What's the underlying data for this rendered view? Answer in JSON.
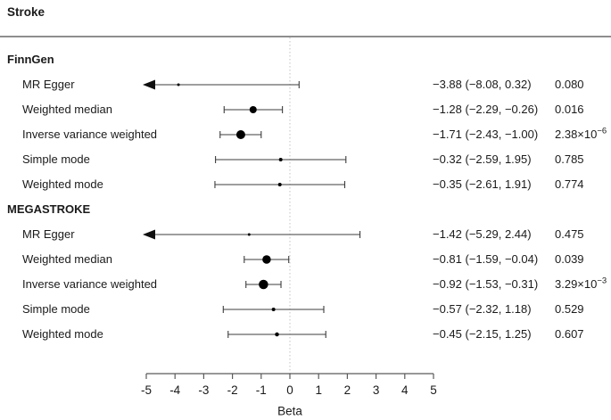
{
  "title": "Stroke",
  "axis": {
    "label": "Beta",
    "min": -5,
    "max": 5,
    "ticks": [
      -5,
      -4,
      -3,
      -2,
      -1,
      0,
      1,
      2,
      3,
      4,
      5
    ],
    "reference_line": 0
  },
  "colors": {
    "marker": "#000000",
    "whisker": "#3c3c3c",
    "axis": "#5a5a5a",
    "reference_line": "#c2c2c2",
    "top_rule": "#8e8e8e",
    "text": "#1a1a1a"
  },
  "chart_data": {
    "type": "forest",
    "title": "Stroke",
    "xlabel": "Beta",
    "xlim": [
      -5,
      5
    ],
    "grid": false,
    "groups": [
      {
        "name": "FinnGen",
        "rows": [
          {
            "method": "MR Egger",
            "beta": -3.88,
            "ci": [
              -8.08,
              0.32
            ],
            "estimate": "−3.88 (−8.08, 0.32)",
            "p": "0.080",
            "p_exp": "",
            "marker": 3
          },
          {
            "method": "Weighted median",
            "beta": -1.28,
            "ci": [
              -2.29,
              -0.26
            ],
            "estimate": "−1.28 (−2.29, −0.26)",
            "p": "0.016",
            "p_exp": "",
            "marker": 8
          },
          {
            "method": "Inverse variance weighted",
            "beta": -1.71,
            "ci": [
              -2.43,
              -1.0
            ],
            "estimate": "−1.71 (−2.43, −1.00)",
            "p": "2.38×10",
            "p_exp": "−6",
            "marker": 10
          },
          {
            "method": "Simple mode",
            "beta": -0.32,
            "ci": [
              -2.59,
              1.95
            ],
            "estimate": "−0.32 (−2.59, 1.95)",
            "p": "0.785",
            "p_exp": "",
            "marker": 4
          },
          {
            "method": "Weighted mode",
            "beta": -0.35,
            "ci": [
              -2.61,
              1.91
            ],
            "estimate": "−0.35 (−2.61, 1.91)",
            "p": "0.774",
            "p_exp": "",
            "marker": 4
          }
        ]
      },
      {
        "name": "MEGASTROKE",
        "rows": [
          {
            "method": "MR Egger",
            "beta": -1.42,
            "ci": [
              -5.29,
              2.44
            ],
            "estimate": "−1.42 (−5.29, 2.44)",
            "p": "0.475",
            "p_exp": "",
            "marker": 3
          },
          {
            "method": "Weighted median",
            "beta": -0.81,
            "ci": [
              -1.59,
              -0.04
            ],
            "estimate": "−0.81 (−1.59, −0.04)",
            "p": "0.039",
            "p_exp": "",
            "marker": 9.5
          },
          {
            "method": "Inverse variance weighted",
            "beta": -0.92,
            "ci": [
              -1.53,
              -0.31
            ],
            "estimate": "−0.92 (−1.53, −0.31)",
            "p": "3.29×10",
            "p_exp": "−3",
            "marker": 10.5
          },
          {
            "method": "Simple mode",
            "beta": -0.57,
            "ci": [
              -2.32,
              1.18
            ],
            "estimate": "−0.57 (−2.32, 1.18)",
            "p": "0.529",
            "p_exp": "",
            "marker": 4
          },
          {
            "method": "Weighted mode",
            "beta": -0.45,
            "ci": [
              -2.15,
              1.25
            ],
            "estimate": "−0.45 (−2.15, 1.25)",
            "p": "0.607",
            "p_exp": "",
            "marker": 4.5
          }
        ]
      }
    ]
  }
}
